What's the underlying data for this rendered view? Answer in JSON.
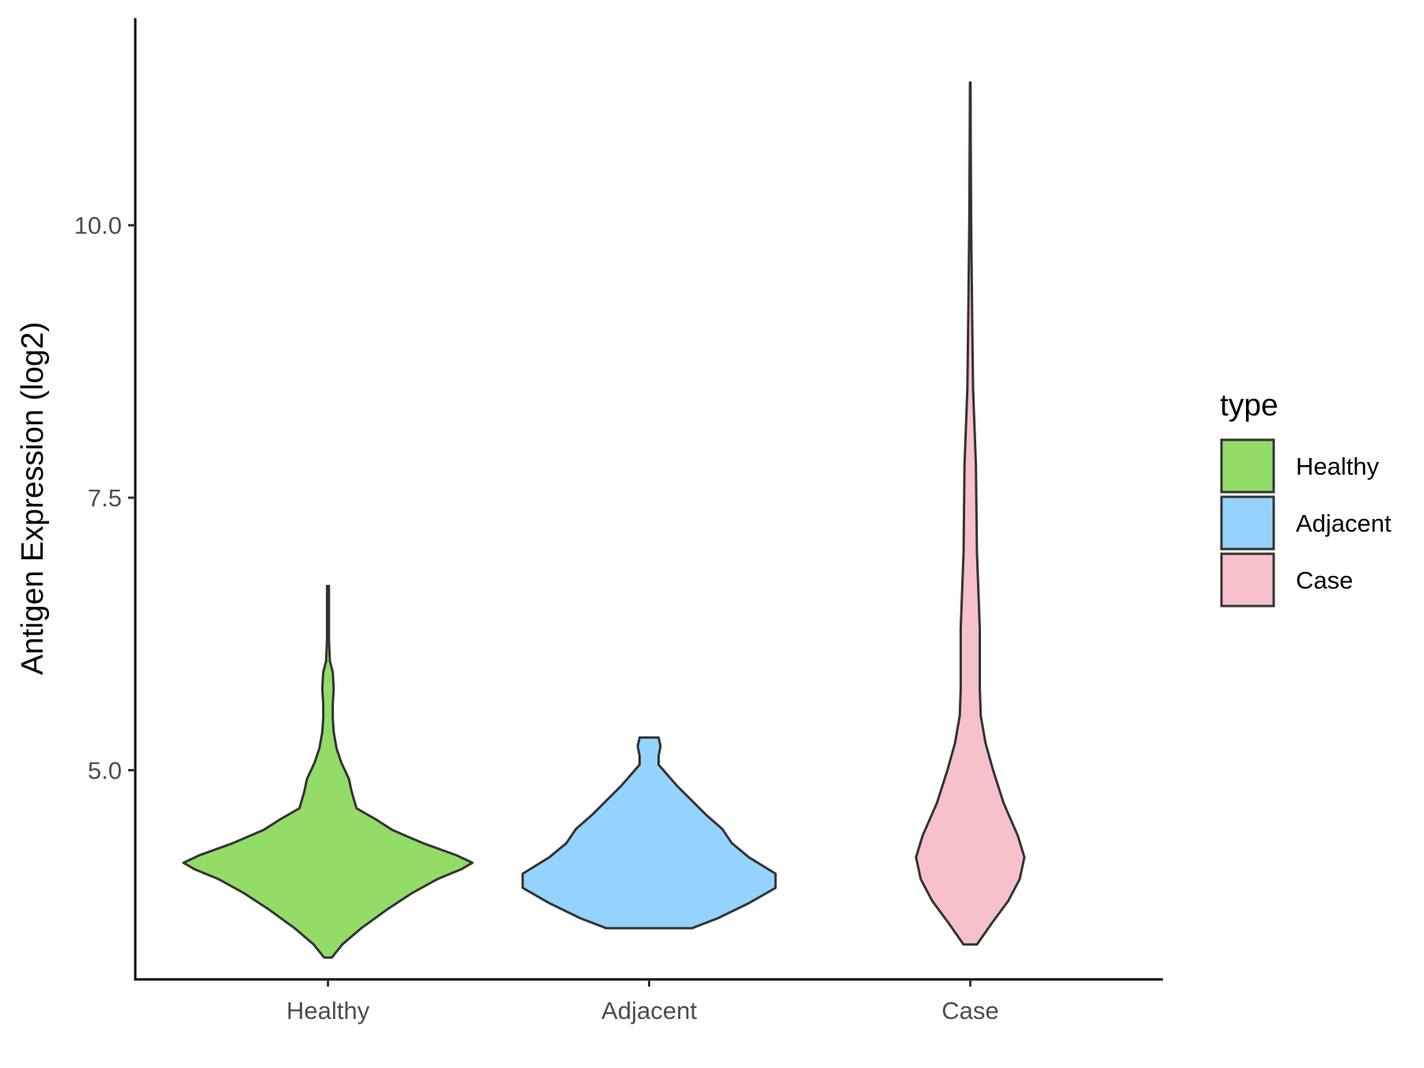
{
  "chart_data": {
    "type": "violin",
    "ylabel": "Antigen Expression (log2)",
    "xlabel": "",
    "ylim": [
      3.08,
      11.9
    ],
    "yticks": [
      {
        "value": 5.0,
        "label": "5.0"
      },
      {
        "value": 7.5,
        "label": "7.5"
      },
      {
        "value": 10.0,
        "label": "10.0"
      }
    ],
    "categories": [
      "Healthy",
      "Adjacent",
      "Case"
    ],
    "legend": {
      "title": "type",
      "position": "right",
      "entries": [
        "Healthy",
        "Adjacent",
        "Case"
      ]
    },
    "colors": {
      "Healthy": "#93dc68",
      "Adjacent": "#94d3fe",
      "Case": "#f7c1cb",
      "outline": "#333333"
    },
    "violins": [
      {
        "name": "Healthy",
        "profile": [
          [
            3.28,
            0.04
          ],
          [
            3.4,
            0.15
          ],
          [
            3.55,
            0.35
          ],
          [
            3.72,
            0.62
          ],
          [
            3.87,
            0.88
          ],
          [
            4.0,
            1.15
          ],
          [
            4.09,
            1.4
          ],
          [
            4.15,
            1.52
          ],
          [
            4.22,
            1.35
          ],
          [
            4.33,
            1.0
          ],
          [
            4.45,
            0.68
          ],
          [
            4.55,
            0.5
          ],
          [
            4.65,
            0.3
          ],
          [
            4.8,
            0.25
          ],
          [
            4.92,
            0.22
          ],
          [
            5.07,
            0.14
          ],
          [
            5.2,
            0.09
          ],
          [
            5.35,
            0.06
          ],
          [
            5.48,
            0.05
          ],
          [
            5.6,
            0.05
          ],
          [
            5.75,
            0.06
          ],
          [
            5.9,
            0.05
          ],
          [
            6.0,
            0.02
          ],
          [
            6.2,
            0.01
          ],
          [
            6.69,
            0.01
          ]
        ]
      },
      {
        "name": "Adjacent",
        "profile": [
          [
            3.55,
            0.45
          ],
          [
            3.64,
            0.72
          ],
          [
            3.78,
            1.05
          ],
          [
            3.92,
            1.33
          ],
          [
            4.05,
            1.33
          ],
          [
            4.2,
            1.05
          ],
          [
            4.33,
            0.87
          ],
          [
            4.46,
            0.77
          ],
          [
            4.59,
            0.6
          ],
          [
            4.72,
            0.45
          ],
          [
            4.85,
            0.3
          ],
          [
            4.95,
            0.2
          ],
          [
            5.05,
            0.1
          ],
          [
            5.13,
            0.1
          ],
          [
            5.22,
            0.12
          ],
          [
            5.3,
            0.1
          ]
        ]
      },
      {
        "name": "Case",
        "profile": [
          [
            3.4,
            0.07
          ],
          [
            3.6,
            0.23
          ],
          [
            3.8,
            0.4
          ],
          [
            4.0,
            0.52
          ],
          [
            4.2,
            0.57
          ],
          [
            4.4,
            0.5
          ],
          [
            4.7,
            0.35
          ],
          [
            5.0,
            0.24
          ],
          [
            5.25,
            0.16
          ],
          [
            5.5,
            0.11
          ],
          [
            5.75,
            0.1
          ],
          [
            6.0,
            0.1
          ],
          [
            6.3,
            0.1
          ],
          [
            7.0,
            0.07
          ],
          [
            7.8,
            0.06
          ],
          [
            8.5,
            0.03
          ],
          [
            9.2,
            0.02
          ],
          [
            10.0,
            0.01
          ],
          [
            10.8,
            0.005
          ],
          [
            11.31,
            0.003
          ]
        ]
      }
    ]
  }
}
